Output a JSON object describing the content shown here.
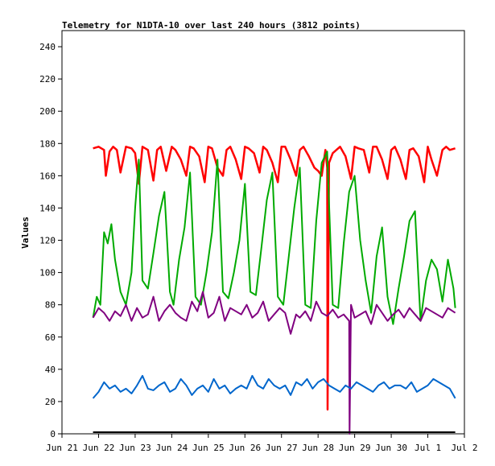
{
  "chart_data": {
    "type": "line",
    "title": "Telemetry for N1DTA-10 over last 240 hours (3812 points)",
    "ylabel": "Values",
    "xlabel": "",
    "ylim": [
      0,
      250
    ],
    "yticks": [
      0,
      20,
      40,
      60,
      80,
      100,
      120,
      140,
      160,
      180,
      200,
      220,
      240
    ],
    "xlim": [
      0,
      11
    ],
    "xticks": [
      {
        "x": 0,
        "label": "Jun 21"
      },
      {
        "x": 1,
        "label": "Jun 22"
      },
      {
        "x": 2,
        "label": "Jun 23"
      },
      {
        "x": 3,
        "label": "Jun 24"
      },
      {
        "x": 4,
        "label": "Jun 25"
      },
      {
        "x": 5,
        "label": "Jun 26"
      },
      {
        "x": 6,
        "label": "Jun 27"
      },
      {
        "x": 7,
        "label": "Jun 28"
      },
      {
        "x": 8,
        "label": "Jun 29"
      },
      {
        "x": 9,
        "label": "Jun 30"
      },
      {
        "x": 10,
        "label": "Jul 1"
      },
      {
        "x": 11,
        "label": "Jul 2"
      }
    ],
    "grid": false,
    "series": [
      {
        "color": "#ff0000",
        "x": [
          0.85,
          1.0,
          1.15,
          1.2,
          1.3,
          1.4,
          1.5,
          1.6,
          1.75,
          1.9,
          2.0,
          2.1,
          2.2,
          2.35,
          2.5,
          2.6,
          2.7,
          2.85,
          3.0,
          3.1,
          3.25,
          3.4,
          3.5,
          3.6,
          3.75,
          3.9,
          4.0,
          4.1,
          4.25,
          4.4,
          4.5,
          4.6,
          4.75,
          4.9,
          5.0,
          5.1,
          5.25,
          5.4,
          5.5,
          5.6,
          5.75,
          5.9,
          6.0,
          6.1,
          6.25,
          6.4,
          6.5,
          6.6,
          6.75,
          6.9,
          7.0,
          7.1,
          7.2,
          7.25,
          7.26,
          7.3,
          7.4,
          7.5,
          7.6,
          7.75,
          7.9,
          8.0,
          8.1,
          8.25,
          8.4,
          8.5,
          8.6,
          8.75,
          8.9,
          9.0,
          9.1,
          9.25,
          9.4,
          9.5,
          9.6,
          9.75,
          9.9,
          10.0,
          10.1,
          10.25,
          10.4,
          10.5,
          10.6,
          10.75
        ],
        "y": [
          177,
          178,
          176,
          160,
          175,
          178,
          176,
          162,
          178,
          177,
          174,
          155,
          178,
          176,
          157,
          176,
          178,
          163,
          178,
          176,
          170,
          160,
          178,
          177,
          172,
          156,
          178,
          177,
          165,
          160,
          176,
          178,
          170,
          158,
          178,
          177,
          174,
          162,
          178,
          176,
          168,
          156,
          178,
          178,
          170,
          160,
          176,
          178,
          172,
          165,
          163,
          160,
          176,
          165,
          15,
          168,
          174,
          176,
          178,
          172,
          158,
          178,
          177,
          176,
          162,
          178,
          178,
          170,
          158,
          176,
          178,
          170,
          158,
          176,
          177,
          172,
          156,
          178,
          170,
          160,
          176,
          178,
          176,
          177
        ]
      },
      {
        "color": "#00aa00",
        "x": [
          0.85,
          0.95,
          1.05,
          1.15,
          1.25,
          1.35,
          1.45,
          1.6,
          1.75,
          1.9,
          2.0,
          2.1,
          2.2,
          2.35,
          2.5,
          2.65,
          2.8,
          2.95,
          3.05,
          3.2,
          3.35,
          3.5,
          3.65,
          3.8,
          3.95,
          4.1,
          4.25,
          4.4,
          4.55,
          4.7,
          4.85,
          5.0,
          5.15,
          5.3,
          5.45,
          5.6,
          5.75,
          5.9,
          6.05,
          6.2,
          6.35,
          6.5,
          6.65,
          6.8,
          6.95,
          7.1,
          7.25,
          7.4,
          7.55,
          7.7,
          7.85,
          8.0,
          8.15,
          8.3,
          8.45,
          8.6,
          8.75,
          8.9,
          9.05,
          9.2,
          9.35,
          9.5,
          9.65,
          9.8,
          9.95,
          10.1,
          10.25,
          10.4,
          10.55,
          10.7,
          10.75
        ],
        "y": [
          72,
          85,
          80,
          125,
          118,
          130,
          108,
          88,
          80,
          100,
          140,
          170,
          95,
          90,
          112,
          135,
          150,
          88,
          80,
          108,
          128,
          162,
          85,
          80,
          100,
          125,
          170,
          88,
          84,
          100,
          120,
          155,
          88,
          86,
          115,
          145,
          162,
          85,
          80,
          110,
          140,
          165,
          80,
          78,
          132,
          168,
          175,
          80,
          78,
          118,
          150,
          160,
          120,
          95,
          75,
          110,
          128,
          85,
          68,
          90,
          110,
          132,
          138,
          70,
          95,
          108,
          102,
          82,
          108,
          90,
          78
        ]
      },
      {
        "color": "#800080",
        "x": [
          0.85,
          1.0,
          1.15,
          1.3,
          1.45,
          1.6,
          1.75,
          1.9,
          2.05,
          2.2,
          2.35,
          2.5,
          2.65,
          2.8,
          2.95,
          3.1,
          3.25,
          3.4,
          3.55,
          3.7,
          3.85,
          4.0,
          4.15,
          4.3,
          4.45,
          4.6,
          4.75,
          4.9,
          5.05,
          5.2,
          5.35,
          5.5,
          5.65,
          5.8,
          5.95,
          6.1,
          6.25,
          6.4,
          6.5,
          6.65,
          6.8,
          6.95,
          7.1,
          7.25,
          7.4,
          7.55,
          7.7,
          7.85,
          7.86,
          7.9,
          8.0,
          8.15,
          8.3,
          8.45,
          8.6,
          8.75,
          8.9,
          9.05,
          9.2,
          9.35,
          9.5,
          9.65,
          9.8,
          9.95,
          10.1,
          10.25,
          10.4,
          10.55,
          10.75
        ],
        "y": [
          72,
          78,
          75,
          70,
          76,
          73,
          80,
          70,
          78,
          72,
          74,
          85,
          70,
          76,
          80,
          75,
          72,
          70,
          82,
          76,
          88,
          72,
          75,
          85,
          70,
          78,
          76,
          74,
          80,
          72,
          75,
          82,
          70,
          74,
          78,
          75,
          62,
          74,
          72,
          76,
          70,
          82,
          75,
          73,
          77,
          72,
          74,
          70,
          0,
          80,
          72,
          74,
          76,
          68,
          80,
          75,
          70,
          74,
          77,
          72,
          78,
          74,
          70,
          78,
          76,
          74,
          72,
          78,
          75
        ]
      },
      {
        "color": "#0066cc",
        "x": [
          0.85,
          1.0,
          1.15,
          1.3,
          1.45,
          1.6,
          1.75,
          1.9,
          2.05,
          2.2,
          2.35,
          2.5,
          2.65,
          2.8,
          2.95,
          3.1,
          3.25,
          3.4,
          3.55,
          3.7,
          3.85,
          4.0,
          4.15,
          4.3,
          4.45,
          4.6,
          4.75,
          4.9,
          5.05,
          5.2,
          5.35,
          5.5,
          5.65,
          5.8,
          5.95,
          6.1,
          6.25,
          6.4,
          6.55,
          6.7,
          6.85,
          7.0,
          7.15,
          7.3,
          7.45,
          7.6,
          7.75,
          7.9,
          8.05,
          8.2,
          8.35,
          8.5,
          8.65,
          8.8,
          8.95,
          9.1,
          9.25,
          9.4,
          9.55,
          9.7,
          9.85,
          10.0,
          10.15,
          10.3,
          10.45,
          10.6,
          10.75
        ],
        "y": [
          22,
          26,
          32,
          28,
          30,
          26,
          28,
          25,
          30,
          36,
          28,
          27,
          30,
          32,
          26,
          28,
          34,
          30,
          24,
          28,
          30,
          26,
          34,
          28,
          30,
          25,
          28,
          30,
          28,
          36,
          30,
          28,
          34,
          30,
          28,
          30,
          24,
          32,
          30,
          34,
          28,
          32,
          34,
          30,
          28,
          26,
          30,
          28,
          32,
          30,
          28,
          26,
          30,
          32,
          28,
          30,
          30,
          28,
          32,
          26,
          28,
          30,
          34,
          32,
          30,
          28,
          22
        ]
      },
      {
        "color": "#000000",
        "x": [
          0.85,
          10.75
        ],
        "y": [
          1,
          1
        ]
      }
    ]
  }
}
